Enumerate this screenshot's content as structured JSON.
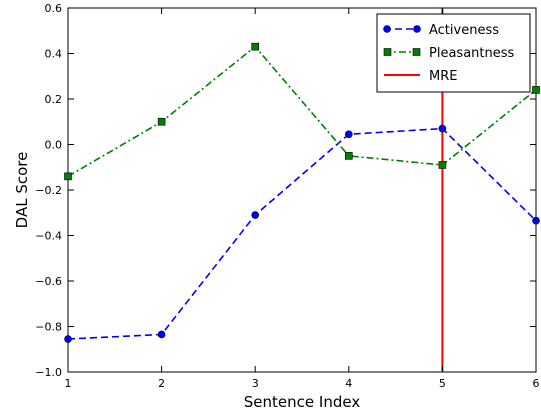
{
  "chart_data": {
    "type": "line",
    "title": "",
    "xlabel": "Sentence Index",
    "ylabel": "DAL Score",
    "xlim": [
      1,
      6
    ],
    "ylim": [
      -1.0,
      0.6
    ],
    "x_ticks": [
      1,
      2,
      3,
      4,
      5,
      6
    ],
    "y_ticks": [
      -1.0,
      -0.8,
      -0.6,
      -0.4,
      -0.2,
      0.0,
      0.2,
      0.4,
      0.6
    ],
    "x_tick_labels": [
      "1",
      "2",
      "3",
      "4",
      "5",
      "6"
    ],
    "y_tick_labels": [
      "−1.0",
      "−0.8",
      "−0.6",
      "−0.4",
      "−0.2",
      "0.0",
      "0.2",
      "0.4",
      "0.6"
    ],
    "grid": false,
    "legend_position": "top-right",
    "series": [
      {
        "name": "Activeness",
        "x": [
          1,
          2,
          3,
          4,
          5,
          6
        ],
        "values": [
          -0.855,
          -0.835,
          -0.31,
          0.045,
          0.07,
          -0.335
        ],
        "color": "#0000ff",
        "line_style": "dashed",
        "marker": "circle"
      },
      {
        "name": "Pleasantness",
        "x": [
          1,
          2,
          3,
          4,
          5,
          6
        ],
        "values": [
          -0.14,
          0.1,
          0.43,
          -0.05,
          -0.09,
          0.24
        ],
        "color": "#008000",
        "line_style": "dash-dot",
        "marker": "square"
      }
    ],
    "vertical_lines": [
      {
        "name": "MRE",
        "x": 5,
        "color": "#ff0000"
      }
    ]
  }
}
